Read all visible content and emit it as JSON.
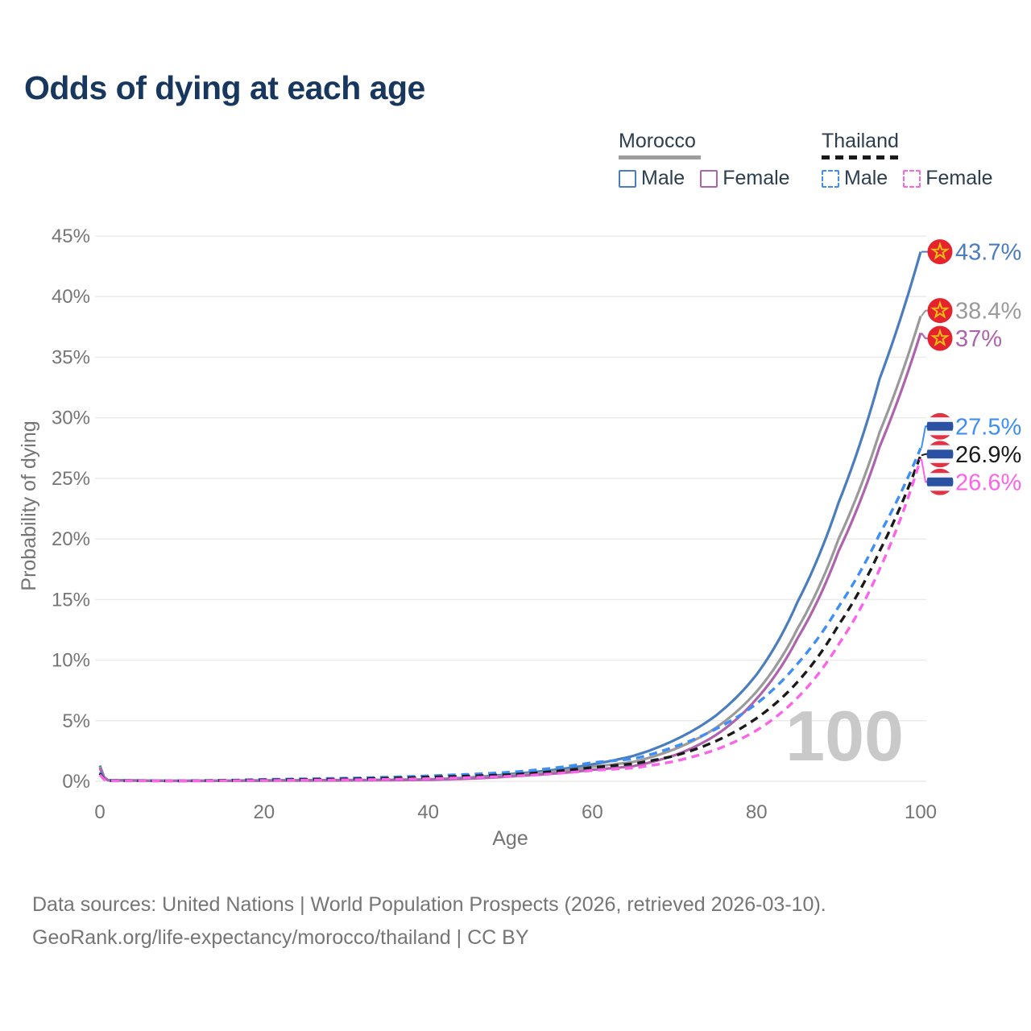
{
  "title": "Odds of dying at each age",
  "legend": {
    "groups": [
      {
        "country": "Morocco",
        "line_style": "solid",
        "underline_color": "#9e9e9e",
        "items": [
          {
            "label": "Male",
            "color": "#4a7dbe",
            "dashed": false
          },
          {
            "label": "Female",
            "color": "#ad64ad",
            "dashed": false
          }
        ]
      },
      {
        "country": "Thailand",
        "line_style": "dashed",
        "underline_color": "#1a1a1a",
        "items": [
          {
            "label": "Male",
            "color": "#3f8ef5",
            "dashed": true
          },
          {
            "label": "Female",
            "color": "#fb64e8",
            "dashed": true
          }
        ]
      }
    ]
  },
  "chart_data": {
    "type": "line",
    "title": "Odds of dying at each age",
    "xlabel": "Age",
    "ylabel": "Probability of dying",
    "xlim": [
      0,
      100
    ],
    "ylim_percent": [
      0,
      45
    ],
    "grid": "horizontal",
    "x_ticks": [
      "0",
      "20",
      "40",
      "60",
      "80",
      "100"
    ],
    "y_ticks": [
      "0%",
      "5%",
      "10%",
      "15%",
      "20%",
      "25%",
      "30%",
      "35%",
      "40%",
      "45%"
    ],
    "age_marker": "100",
    "age_anchors": [
      0,
      1,
      10,
      20,
      30,
      40,
      50,
      60,
      65,
      70,
      75,
      80,
      85,
      90,
      95,
      100
    ],
    "series": [
      {
        "name": "Morocco Male",
        "country": "Morocco",
        "sex": "Male",
        "color": "#4a7dbe",
        "dash": "solid",
        "end_value_percent": 43.7,
        "values_percent": [
          1.3,
          0.1,
          0.04,
          0.08,
          0.1,
          0.16,
          0.6,
          1.4,
          2.1,
          3.4,
          5.4,
          8.8,
          14.8,
          23.0,
          33.2,
          43.7
        ]
      },
      {
        "name": "Morocco Both sexes",
        "country": "Morocco",
        "sex": "Both",
        "color": "#9a9a9a",
        "dash": "solid",
        "end_value_percent": 38.4,
        "values_percent": [
          1.2,
          0.09,
          0.035,
          0.065,
          0.085,
          0.14,
          0.5,
          1.2,
          1.6,
          2.65,
          4.4,
          7.4,
          12.6,
          20.0,
          28.8,
          38.4
        ]
      },
      {
        "name": "Morocco Female",
        "country": "Morocco",
        "sex": "Female",
        "color": "#ad64ad",
        "dash": "solid",
        "end_value_percent": 37.0,
        "values_percent": [
          1.1,
          0.08,
          0.03,
          0.05,
          0.07,
          0.12,
          0.4,
          0.95,
          1.25,
          2.15,
          3.8,
          6.8,
          11.8,
          19.0,
          27.6,
          37.0
        ]
      },
      {
        "name": "Thailand Male",
        "country": "Thailand",
        "sex": "Male",
        "color": "#3f8ef5",
        "dash": "dashed",
        "end_value_percent": 27.5,
        "values_percent": [
          0.75,
          0.06,
          0.05,
          0.16,
          0.26,
          0.45,
          0.75,
          1.55,
          1.85,
          2.85,
          4.3,
          6.4,
          9.7,
          14.4,
          20.4,
          27.5
        ]
      },
      {
        "name": "Thailand Both sexes",
        "country": "Thailand",
        "sex": "Both",
        "color": "#1a1a1a",
        "dash": "dashed",
        "end_value_percent": 26.9,
        "values_percent": [
          0.65,
          0.05,
          0.04,
          0.11,
          0.19,
          0.34,
          0.55,
          1.15,
          1.45,
          2.1,
          3.3,
          5.2,
          8.2,
          12.9,
          19.0,
          26.9
        ]
      },
      {
        "name": "Thailand Female",
        "country": "Thailand",
        "sex": "Female",
        "color": "#fb64e8",
        "dash": "dashed",
        "end_value_percent": 26.6,
        "values_percent": [
          0.55,
          0.045,
          0.03,
          0.07,
          0.12,
          0.22,
          0.42,
          0.9,
          1.1,
          1.65,
          2.6,
          4.2,
          6.9,
          11.3,
          17.5,
          26.6
        ]
      }
    ],
    "annotations": [
      {
        "text": "43.7%",
        "flag": "morocco-flag",
        "color": "#4a7dbe",
        "value_percent": 43.7
      },
      {
        "text": "38.4%",
        "flag": "morocco-flag",
        "color": "#9a9a9a",
        "value_percent": 38.4
      },
      {
        "text": "37%",
        "flag": "morocco-flag",
        "color": "#ad64ad",
        "value_percent": 37.0
      },
      {
        "text": "27.5%",
        "flag": "thailand-flag",
        "color": "#3f8ef5",
        "value_percent": 27.5
      },
      {
        "text": "26.9%",
        "flag": "thailand-flag",
        "color": "#1a1a1a",
        "value_percent": 26.9
      },
      {
        "text": "26.6%",
        "flag": "thailand-flag",
        "color": "#fb64e8",
        "value_percent": 26.6
      }
    ]
  },
  "colors": {
    "title": "#17375e",
    "axis_text": "#757575",
    "gridline": "#eaeaea",
    "watermark": "#c9c9c9",
    "legend_text": "#2c3e50",
    "morocco_flag_red": "#e5232d",
    "morocco_flag_star": "#eebd14",
    "thailand_flag_red": "#e23345",
    "thailand_flag_blue": "#2b51a3",
    "thailand_flag_white": "#f4f5f8"
  },
  "footer": {
    "line1": "Data sources: United Nations | World Population Prospects (2026, retrieved 2026-03-10).",
    "line2": "GeoRank.org/life-expectancy/morocco/thailand | CC BY"
  }
}
